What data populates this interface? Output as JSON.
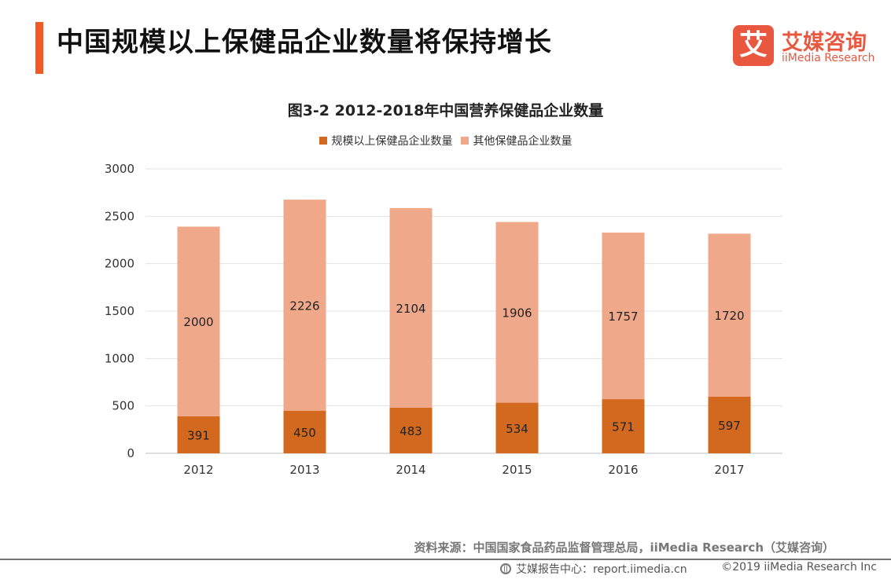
{
  "header": {
    "title": "中国规模以上保健品企业数量将保持增长"
  },
  "logo": {
    "cn": "艾媒咨询",
    "en": "iiMedia Research",
    "mark": "艾"
  },
  "chart_data": {
    "type": "bar",
    "stacked": true,
    "title": "图3-2 2012-2018年中国营养保健品企业数量",
    "categories": [
      "2012",
      "2013",
      "2014",
      "2015",
      "2016",
      "2017"
    ],
    "series": [
      {
        "name": "规模以上保健品企业数量",
        "values": [
          391,
          450,
          483,
          534,
          571,
          597
        ],
        "color": "#d2691e"
      },
      {
        "name": "其他保健品企业数量",
        "values": [
          2000,
          2226,
          2104,
          1906,
          1757,
          1720
        ],
        "color": "#f0a88a"
      }
    ],
    "ylim": [
      0,
      3000
    ],
    "yticks": [
      0,
      500,
      1000,
      1500,
      2000,
      2500,
      3000
    ],
    "grid": true,
    "legend": "top-center",
    "xlabel": "",
    "ylabel": ""
  },
  "footer": {
    "source": "资料来源：中国国家食品药品监督管理总局，iiMedia Research（艾媒咨询）",
    "report_center": "艾媒报告中心：report.iimedia.cn",
    "copyright": "©2019  iiMedia Research  Inc"
  }
}
